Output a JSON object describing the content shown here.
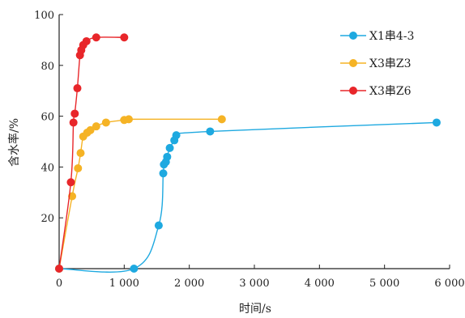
{
  "chart_data": {
    "type": "line",
    "xlabel": "时间/s",
    "ylabel": "含水率/%",
    "xlim": [
      0,
      6000
    ],
    "ylim": [
      0,
      100
    ],
    "x_ticks": [
      0,
      1000,
      2000,
      3000,
      4000,
      5000,
      6000
    ],
    "x_tick_labels": [
      "0",
      "1 000",
      "2 000",
      "3 000",
      "4 000",
      "5 000",
      "6 000"
    ],
    "y_ticks": [
      20,
      40,
      60,
      80,
      100
    ],
    "y_tick_labels": [
      "20",
      "40",
      "60",
      "80",
      "100"
    ],
    "grid": false,
    "legend_position": "top-right",
    "series": [
      {
        "name": "X1串4-3",
        "color": "#1ea9e0",
        "points": [
          [
            0,
            0
          ],
          [
            1150,
            0
          ],
          [
            1530,
            17
          ],
          [
            1600,
            37.5
          ],
          [
            1610,
            41
          ],
          [
            1640,
            42
          ],
          [
            1660,
            44
          ],
          [
            1700,
            47.5
          ],
          [
            1770,
            50.5
          ],
          [
            1800,
            52.5
          ],
          [
            2320,
            54
          ],
          [
            5800,
            57.5
          ]
        ]
      },
      {
        "name": "X3串Z3",
        "color": "#f5b325",
        "points": [
          [
            0,
            0
          ],
          [
            200,
            28.5
          ],
          [
            290,
            39.5
          ],
          [
            330,
            45.5
          ],
          [
            370,
            52
          ],
          [
            430,
            53.5
          ],
          [
            480,
            54.5
          ],
          [
            570,
            56
          ],
          [
            720,
            57.5
          ],
          [
            1000,
            58.5
          ],
          [
            1070,
            58.8
          ],
          [
            2500,
            58.8
          ]
        ]
      },
      {
        "name": "X3串Z6",
        "color": "#e8262a",
        "points": [
          [
            0,
            0
          ],
          [
            180,
            34
          ],
          [
            220,
            57.5
          ],
          [
            240,
            61
          ],
          [
            280,
            71
          ],
          [
            320,
            84
          ],
          [
            340,
            86
          ],
          [
            370,
            88
          ],
          [
            420,
            89.5
          ],
          [
            570,
            91
          ],
          [
            1000,
            91
          ]
        ]
      }
    ]
  }
}
